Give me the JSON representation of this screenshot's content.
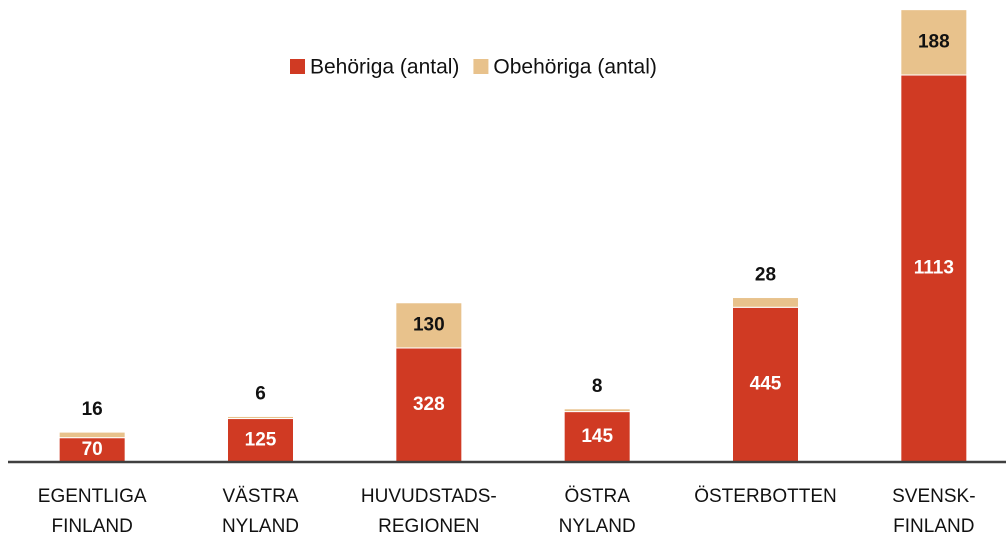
{
  "chart_data": {
    "type": "stacked_bar",
    "categories": [
      "EGENTLIGA\nFINLAND",
      "VÄSTRA\nNYLAND",
      "HUVUDSTADS-\nREGIONEN",
      "ÖSTRA\nNYLAND",
      "ÖSTERBOTTEN",
      "SVENSK-\nFINLAND"
    ],
    "series": [
      {
        "name": "Behöriga (antal)",
        "color": "#d03a23",
        "values": [
          70,
          125,
          328,
          145,
          445,
          1113
        ]
      },
      {
        "name": "Obehöriga (antal)",
        "color": "#e8c28c",
        "values": [
          16,
          6,
          130,
          8,
          28,
          188
        ]
      }
    ],
    "ylim": [
      0,
      1300
    ],
    "legend": "top"
  }
}
